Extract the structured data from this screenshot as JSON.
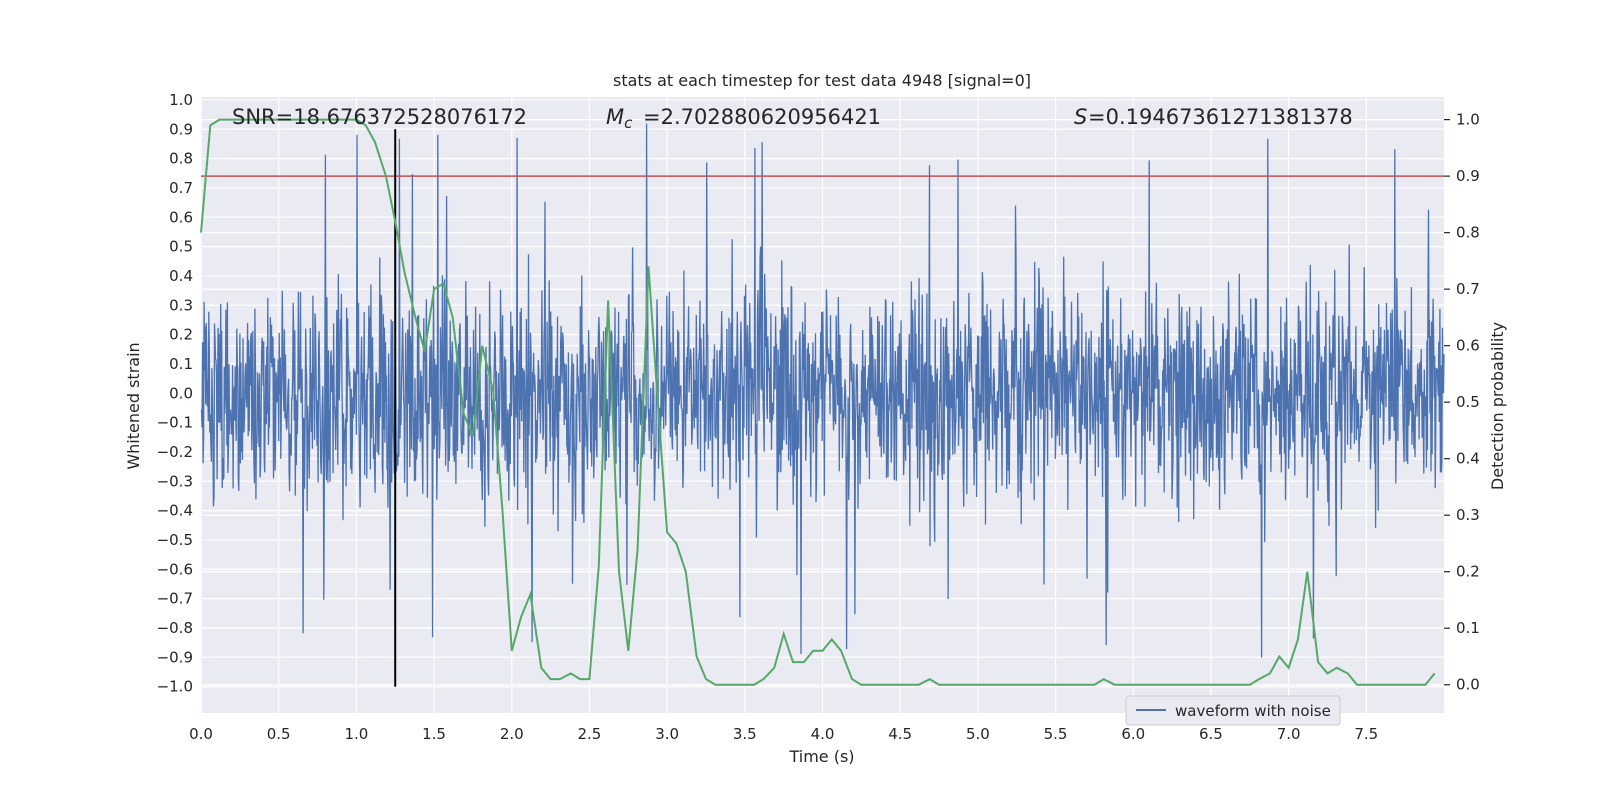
{
  "chart_data": {
    "type": "line",
    "title": "stats at each timestep for test data 4948 [signal=0]",
    "xlabel": "Time (s)",
    "ylabel_left": "Whitened strain",
    "ylabel_right": "Detection probability",
    "xlim": [
      0.0,
      8.0
    ],
    "ylim_left": [
      -1.09,
      1.01
    ],
    "ylim_right": [
      -0.05,
      1.04
    ],
    "x_ticks": [
      "0.0",
      "0.5",
      "1.0",
      "1.5",
      "2.0",
      "2.5",
      "3.0",
      "3.5",
      "4.0",
      "4.5",
      "5.0",
      "5.5",
      "6.0",
      "6.5",
      "7.0",
      "7.5"
    ],
    "y_left_ticks": [
      "1.0",
      "0.9",
      "0.8",
      "0.7",
      "0.6",
      "0.5",
      "0.4",
      "0.3",
      "0.2",
      "0.1",
      "0.0",
      "−0.1",
      "−0.2",
      "−0.3",
      "−0.4",
      "−0.5",
      "−0.6",
      "−0.7",
      "−0.8",
      "−0.9",
      "−1.0"
    ],
    "y_right_ticks": [
      "1.0",
      "0.9",
      "0.8",
      "0.7",
      "0.6",
      "0.5",
      "0.4",
      "0.3",
      "0.2",
      "0.1",
      "0.0"
    ],
    "grid": true,
    "legend_position": "bottom-right",
    "annotations": {
      "snr": "SNR=18.676372528076172",
      "mc": "=2.702880620956421",
      "s": "=0.19467361271381378"
    },
    "threshold_right": 0.9,
    "vline_x": 1.25,
    "series": [
      {
        "name": "waveform with noise",
        "axis": "left",
        "color": "#4c72b0",
        "envelope_typical": 0.42,
        "envelope_max": 0.92,
        "envelope_min": -1.0
      },
      {
        "axis": "right",
        "color": "#55a868",
        "x": [
          0.0,
          0.06,
          0.12,
          0.19,
          0.25,
          0.31,
          0.38,
          0.44,
          0.5,
          0.56,
          0.62,
          0.69,
          0.75,
          0.81,
          0.88,
          0.94,
          1.0,
          1.06,
          1.12,
          1.19,
          1.25,
          1.31,
          1.38,
          1.44,
          1.5,
          1.56,
          1.62,
          1.69,
          1.75,
          1.81,
          1.88,
          1.94,
          2.0,
          2.06,
          2.12,
          2.19,
          2.25,
          2.31,
          2.38,
          2.44,
          2.5,
          2.56,
          2.62,
          2.69,
          2.75,
          2.81,
          2.88,
          2.94,
          3.0,
          3.06,
          3.12,
          3.19,
          3.25,
          3.31,
          3.38,
          3.44,
          3.5,
          3.56,
          3.62,
          3.69,
          3.75,
          3.81,
          3.88,
          3.94,
          4.0,
          4.06,
          4.12,
          4.19,
          4.25,
          4.31,
          4.38,
          4.44,
          4.5,
          4.56,
          4.62,
          4.69,
          4.75,
          4.81,
          4.88,
          4.94,
          5.0,
          5.06,
          5.12,
          5.19,
          5.25,
          5.31,
          5.38,
          5.44,
          5.5,
          5.56,
          5.62,
          5.69,
          5.75,
          5.81,
          5.88,
          5.94,
          6.0,
          6.06,
          6.12,
          6.19,
          6.25,
          6.31,
          6.38,
          6.44,
          6.5,
          6.56,
          6.62,
          6.69,
          6.75,
          6.81,
          6.88,
          6.94,
          7.0,
          7.06,
          7.12,
          7.19,
          7.25,
          7.31,
          7.38,
          7.44,
          7.5,
          7.56,
          7.62,
          7.69,
          7.75,
          7.81,
          7.88,
          7.94
        ],
        "y": [
          0.8,
          0.99,
          1.0,
          1.0,
          1.0,
          1.0,
          1.0,
          1.0,
          1.0,
          1.0,
          1.0,
          1.0,
          1.0,
          1.0,
          1.0,
          1.0,
          1.0,
          0.99,
          0.96,
          0.9,
          0.82,
          0.73,
          0.65,
          0.59,
          0.7,
          0.71,
          0.65,
          0.48,
          0.44,
          0.6,
          0.52,
          0.31,
          0.06,
          0.12,
          0.16,
          0.03,
          0.01,
          0.01,
          0.02,
          0.01,
          0.01,
          0.21,
          0.68,
          0.2,
          0.06,
          0.24,
          0.74,
          0.5,
          0.27,
          0.25,
          0.2,
          0.05,
          0.01,
          0.0,
          0.0,
          0.0,
          0.0,
          0.0,
          0.01,
          0.03,
          0.09,
          0.04,
          0.04,
          0.06,
          0.06,
          0.08,
          0.06,
          0.01,
          0.0,
          0.0,
          0.0,
          0.0,
          0.0,
          0.0,
          0.0,
          0.01,
          0.0,
          0.0,
          0.0,
          0.0,
          0.0,
          0.0,
          0.0,
          0.0,
          0.0,
          0.0,
          0.0,
          0.0,
          0.0,
          0.0,
          0.0,
          0.0,
          0.0,
          0.01,
          0.0,
          0.0,
          0.0,
          0.0,
          0.0,
          0.0,
          0.0,
          0.0,
          0.0,
          0.0,
          0.0,
          0.0,
          0.0,
          0.0,
          0.0,
          0.01,
          0.02,
          0.05,
          0.03,
          0.08,
          0.2,
          0.04,
          0.02,
          0.03,
          0.02,
          0.0,
          0.0,
          0.0,
          0.0,
          0.0,
          0.0,
          0.0,
          0.0,
          0.02
        ]
      }
    ],
    "colors": {
      "background": "#eaeaf2",
      "grid": "#ffffff",
      "threshold": "#c44e52",
      "vline": "#000000",
      "text": "#262626"
    }
  }
}
